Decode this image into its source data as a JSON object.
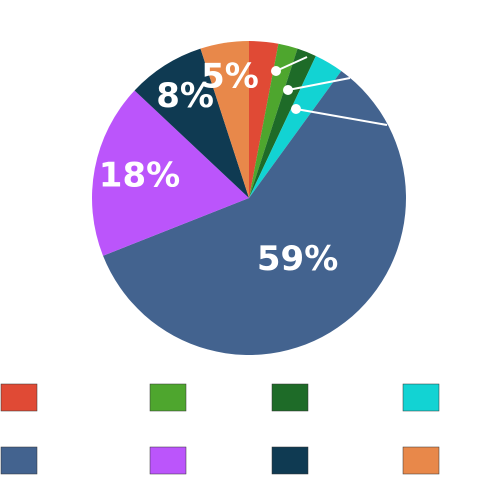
{
  "chart_data": {
    "type": "pie",
    "categories": [
      null,
      null,
      null,
      null,
      null,
      null,
      null,
      null
    ],
    "values": [
      3,
      2,
      2,
      3,
      59,
      18,
      8,
      5
    ],
    "value_labels": [
      null,
      null,
      null,
      null,
      "59%",
      "18%",
      "8%",
      "5%"
    ],
    "colors": [
      "#e04a35",
      "#4ea62e",
      "#1e6b28",
      "#12d3d3",
      "#43638f",
      "#bb55fb",
      "#0f3a52",
      "#e8884a"
    ],
    "start_angle": 90,
    "direction": "clockwise",
    "legend": "bottom"
  }
}
